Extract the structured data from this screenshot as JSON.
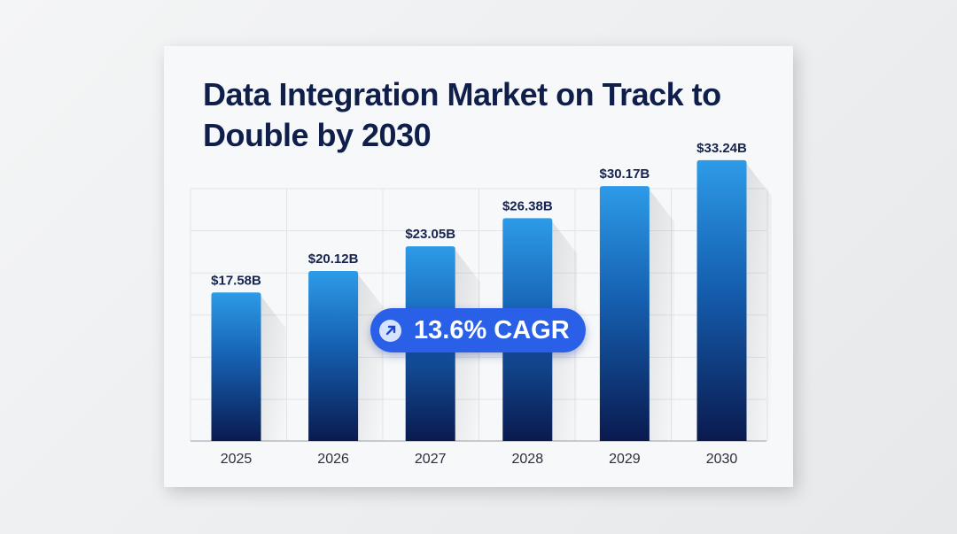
{
  "chart_data": {
    "type": "bar",
    "title": "Data Integration Market on Track to Double by 2030",
    "categories": [
      "2025",
      "2026",
      "2027",
      "2028",
      "2029",
      "2030"
    ],
    "values": [
      17.58,
      20.12,
      23.05,
      26.38,
      30.17,
      33.24
    ],
    "data_labels": [
      "$17.58B",
      "$20.12B",
      "$23.05B",
      "$26.38B",
      "$30.17B",
      "$33.24B"
    ],
    "xlabel": "",
    "ylabel": "",
    "ylim": [
      0,
      35
    ],
    "grid": true,
    "annotation": "13.6% CAGR",
    "annotation_icon": "arrow-up-right-icon",
    "colors": {
      "bar_top": "#2d9be8",
      "bar_bottom": "#0a1a4f",
      "badge": "#2a5fe8",
      "title": "#0f1f4a"
    }
  }
}
